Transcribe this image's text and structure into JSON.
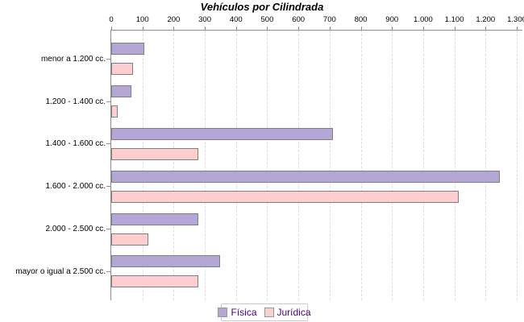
{
  "title": "Vehículos por Cilindrada",
  "chart_data": {
    "type": "bar",
    "orientation": "horizontal",
    "title": "Vehículos por Cilindrada",
    "xlabel": "",
    "ylabel": "",
    "categories": [
      "menor a 1.200 cc.",
      "1.200 - 1.400 cc.",
      "1.400 - 1.600 cc.",
      "1.600 - 2.000 cc.",
      "2.000 - 2.500 cc.",
      "mayor o igual a 2.500 cc."
    ],
    "series": [
      {
        "name": "Física",
        "color": "#b4a7d6",
        "values": [
          105,
          65,
          710,
          1245,
          280,
          350
        ]
      },
      {
        "name": "Jurídica",
        "color": "#fdcecf",
        "values": [
          70,
          20,
          280,
          1115,
          120,
          280
        ]
      }
    ],
    "xlim": [
      0,
      1300
    ],
    "x_ticks": [
      0,
      100,
      200,
      300,
      400,
      500,
      600,
      700,
      800,
      900,
      1000,
      1100,
      1200,
      1300
    ],
    "x_tick_labels": [
      "0",
      "100",
      "200",
      "300",
      "400",
      "500",
      "600",
      "700",
      "800",
      "900",
      "1.000",
      "1.100",
      "1.200",
      "1.300"
    ],
    "grid": "vertical-dashed",
    "legend_position": "bottom-center"
  },
  "legend": {
    "items": [
      {
        "label": "Física"
      },
      {
        "label": "Jurídica"
      }
    ]
  },
  "colors": {
    "fisica_fill": "#b4a7d6",
    "juridica_fill": "#fdcecf",
    "bar_border": "#7f7f7f",
    "axis": "#8c8c8c",
    "grid": "#dcdcdc",
    "legend_border": "#cccccc",
    "legend_text": "#4b0082",
    "background": "#ffffff"
  }
}
